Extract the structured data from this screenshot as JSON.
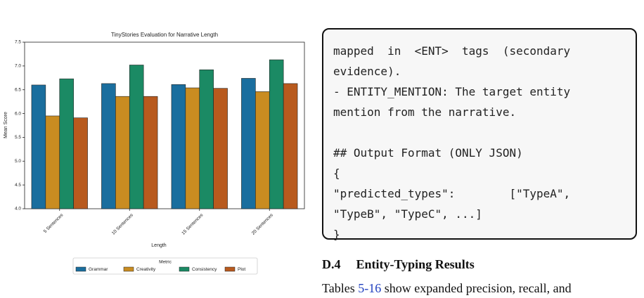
{
  "chart_data": {
    "type": "bar",
    "title": "TinyStories Evaluation for Narrative Length",
    "x_label": "Length",
    "y_label": "Mean Score",
    "legend_title": "Metric",
    "categories": [
      "5 Sentences",
      "10 Sentences",
      "15 Sentences",
      "20 Sentences"
    ],
    "series": [
      {
        "name": "Grammar",
        "color": "#1a6e9e",
        "values": [
          6.6,
          6.63,
          6.61,
          6.74
        ]
      },
      {
        "name": "Creativity",
        "color": "#c98c21",
        "values": [
          5.95,
          6.36,
          6.54,
          6.46
        ]
      },
      {
        "name": "Consistency",
        "color": "#1b8a64",
        "values": [
          6.73,
          7.02,
          6.92,
          7.13
        ]
      },
      {
        "name": "Plot",
        "color": "#b85a1e",
        "values": [
          5.91,
          6.36,
          6.53,
          6.63
        ]
      }
    ],
    "ylim": [
      4.0,
      7.5
    ],
    "yticks": [
      {
        "value": 4,
        "label": "4.0"
      },
      4.5,
      {
        "value": 5,
        "label": "5.0"
      },
      5.5,
      {
        "value": 6,
        "label": "6.0"
      },
      6.5,
      {
        "value": 7,
        "label": "7.0"
      },
      7.5
    ],
    "legend": "bottom",
    "grid": false
  },
  "code_box": {
    "lines": [
      "mapped  in  <ENT>  tags  (secondary",
      "evidence).",
      "- ENTITY_MENTION: The target entity",
      "mention from the narrative.",
      "## Output Format (ONLY JSON)",
      "{",
      "\"predicted_types\":        [\"TypeA\",",
      "\"TypeB\", \"TypeC\", ...]",
      "}"
    ]
  },
  "section": {
    "number": "D.4",
    "title": "Entity-Typing Results"
  },
  "paragraph": {
    "parts": [
      "Tables ",
      "5",
      "-",
      "16",
      " show expanded precision, recall, and"
    ]
  }
}
